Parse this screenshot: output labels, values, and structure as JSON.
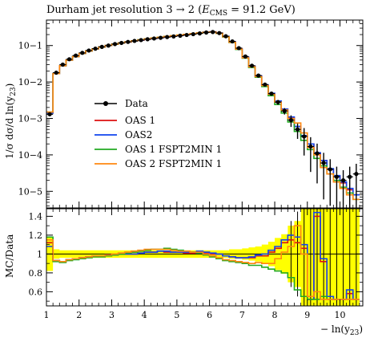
{
  "chart_data": [
    {
      "type": "line",
      "panel": "main",
      "title": "Durham jet resolution 3 → 2 (E_CMS = 91.2 GeV)",
      "title_main": "Durham jet resolution 3 → 2 (",
      "title_ecms_E": "E",
      "title_ecms_sub": "CMS",
      "title_ecms_rest": " = 91.2 GeV)",
      "ylabel": "1/σ dσ/d ln(y23)",
      "ylabel_text": "1/σ dσ/d ln(y",
      "ylabel_sub": "23",
      "ylabel_close": ")",
      "yscale": "log",
      "ylim": [
        3.5e-06,
        0.5
      ],
      "xlim": [
        1.0,
        10.7
      ],
      "yticks": [
        {
          "value": 1e-05,
          "label": "10−5"
        },
        {
          "value": 0.0001,
          "label": "10−4"
        },
        {
          "value": 0.001,
          "label": "10−3"
        },
        {
          "value": 0.01,
          "label": "10−2"
        },
        {
          "value": 0.1,
          "label": "10−1"
        }
      ],
      "legend_position": "center-left",
      "legend": [
        "Data",
        "OAS 1",
        "OAS2",
        "OAS 1 FSPT2MIN 1",
        "OAS 2 FSPT2MIN 1"
      ],
      "series": [
        {
          "name": "Data",
          "color": "#000000",
          "x": [
            1.1,
            1.3,
            1.5,
            1.7,
            1.9,
            2.1,
            2.3,
            2.5,
            2.7,
            2.9,
            3.1,
            3.3,
            3.5,
            3.7,
            3.9,
            4.1,
            4.3,
            4.5,
            4.7,
            4.9,
            5.1,
            5.3,
            5.5,
            5.7,
            5.9,
            6.1,
            6.3,
            6.5,
            6.7,
            6.9,
            7.1,
            7.3,
            7.5,
            7.7,
            7.9,
            8.1,
            8.3,
            8.5,
            8.7,
            8.9,
            9.1,
            9.3,
            9.5,
            9.7,
            9.9,
            10.1,
            10.3,
            10.5
          ],
          "y": [
            0.0013,
            0.018,
            0.03,
            0.042,
            0.053,
            0.063,
            0.073,
            0.082,
            0.092,
            0.1,
            0.11,
            0.118,
            0.126,
            0.134,
            0.141,
            0.149,
            0.156,
            0.163,
            0.171,
            0.178,
            0.186,
            0.195,
            0.205,
            0.215,
            0.228,
            0.235,
            0.22,
            0.18,
            0.13,
            0.085,
            0.05,
            0.028,
            0.015,
            0.0085,
            0.0048,
            0.0028,
            0.0016,
            0.0009,
            0.0005,
            0.00032,
            0.00017,
            0.00011,
            6e-05,
            4e-05,
            2.5e-05,
            2e-05,
            2.5e-05,
            3e-05
          ],
          "yerr_rel": [
            0.05,
            0.02,
            0.02,
            0.02,
            0.02,
            0.02,
            0.02,
            0.02,
            0.02,
            0.02,
            0.02,
            0.02,
            0.02,
            0.02,
            0.02,
            0.02,
            0.02,
            0.02,
            0.02,
            0.02,
            0.02,
            0.02,
            0.02,
            0.02,
            0.02,
            0.02,
            0.02,
            0.02,
            0.02,
            0.02,
            0.03,
            0.04,
            0.05,
            0.07,
            0.1,
            0.15,
            0.2,
            0.35,
            0.45,
            0.7,
            0.8,
            0.85,
            0.9,
            0.9,
            0.9,
            0.9,
            0.9,
            0.9
          ]
        },
        {
          "name": "OAS 1",
          "color": "#dd1111",
          "x": [
            1.0,
            1.2,
            1.4,
            1.6,
            1.8,
            2.0,
            2.2,
            2.4,
            2.6,
            2.8,
            3.0,
            3.2,
            3.4,
            3.6,
            3.8,
            4.0,
            4.2,
            4.4,
            4.6,
            4.8,
            5.0,
            5.2,
            5.4,
            5.6,
            5.8,
            6.0,
            6.2,
            6.4,
            6.6,
            6.8,
            7.0,
            7.2,
            7.4,
            7.6,
            7.8,
            8.0,
            8.2,
            8.4,
            8.6,
            8.8,
            9.0,
            9.2,
            9.4,
            9.6,
            9.8,
            10.0,
            10.2,
            10.4
          ],
          "y": [
            0.0014,
            0.017,
            0.028,
            0.04,
            0.05,
            0.061,
            0.071,
            0.081,
            0.091,
            0.1,
            0.109,
            0.117,
            0.125,
            0.133,
            0.141,
            0.149,
            0.157,
            0.165,
            0.173,
            0.182,
            0.19,
            0.199,
            0.209,
            0.221,
            0.233,
            0.238,
            0.22,
            0.177,
            0.126,
            0.082,
            0.048,
            0.027,
            0.0147,
            0.0083,
            0.0048,
            0.0029,
            0.0018,
            0.00105,
            0.0006,
            0.00033,
            0.0002,
            0.00011,
            7e-05,
            4e-05,
            2.6e-05,
            1.7e-05,
            1.1e-05,
            8e-06
          ]
        },
        {
          "name": "OAS2",
          "color": "#1144ee",
          "x": [
            1.0,
            1.2,
            1.4,
            1.6,
            1.8,
            2.0,
            2.2,
            2.4,
            2.6,
            2.8,
            3.0,
            3.2,
            3.4,
            3.6,
            3.8,
            4.0,
            4.2,
            4.4,
            4.6,
            4.8,
            5.0,
            5.2,
            5.4,
            5.6,
            5.8,
            6.0,
            6.2,
            6.4,
            6.6,
            6.8,
            7.0,
            7.2,
            7.4,
            7.6,
            7.8,
            8.0,
            8.2,
            8.4,
            8.6,
            8.8,
            9.0,
            9.2,
            9.4,
            9.6,
            9.8,
            10.0,
            10.2,
            10.4
          ],
          "y": [
            0.0014,
            0.017,
            0.028,
            0.04,
            0.05,
            0.061,
            0.071,
            0.081,
            0.091,
            0.1,
            0.109,
            0.117,
            0.125,
            0.133,
            0.141,
            0.149,
            0.157,
            0.165,
            0.174,
            0.182,
            0.191,
            0.2,
            0.21,
            0.222,
            0.234,
            0.238,
            0.22,
            0.178,
            0.127,
            0.082,
            0.048,
            0.027,
            0.0147,
            0.0083,
            0.0049,
            0.003,
            0.0018,
            0.0011,
            0.0006,
            0.00034,
            0.0002,
            0.000115,
            7e-05,
            4.2e-05,
            2.7e-05,
            1.8e-05,
            1.2e-05,
            8e-06
          ]
        },
        {
          "name": "OAS 1 FSPT2MIN 1",
          "color": "#22aa22",
          "x": [
            1.0,
            1.2,
            1.4,
            1.6,
            1.8,
            2.0,
            2.2,
            2.4,
            2.6,
            2.8,
            3.0,
            3.2,
            3.4,
            3.6,
            3.8,
            4.0,
            4.2,
            4.4,
            4.6,
            4.8,
            5.0,
            5.2,
            5.4,
            5.6,
            5.8,
            6.0,
            6.2,
            6.4,
            6.6,
            6.8,
            7.0,
            7.2,
            7.4,
            7.6,
            7.8,
            8.0,
            8.2,
            8.4,
            8.6,
            8.8,
            9.0,
            9.2,
            9.4,
            9.6,
            9.8,
            10.0,
            10.2,
            10.4
          ],
          "y": [
            0.0015,
            0.017,
            0.028,
            0.04,
            0.05,
            0.061,
            0.071,
            0.081,
            0.091,
            0.1,
            0.109,
            0.118,
            0.126,
            0.135,
            0.144,
            0.152,
            0.161,
            0.17,
            0.178,
            0.186,
            0.194,
            0.202,
            0.211,
            0.221,
            0.231,
            0.235,
            0.216,
            0.172,
            0.121,
            0.078,
            0.045,
            0.025,
            0.0135,
            0.0075,
            0.0042,
            0.0024,
            0.0014,
            0.0008,
            0.00044,
            0.00025,
            0.00014,
            8e-05,
            5e-05,
            3e-05,
            2e-05,
            1.3e-05,
            9e-06,
            6e-06
          ]
        },
        {
          "name": "OAS 2 FSPT2MIN 1",
          "color": "#ff8811",
          "x": [
            1.0,
            1.2,
            1.4,
            1.6,
            1.8,
            2.0,
            2.2,
            2.4,
            2.6,
            2.8,
            3.0,
            3.2,
            3.4,
            3.6,
            3.8,
            4.0,
            4.2,
            4.4,
            4.6,
            4.8,
            5.0,
            5.2,
            5.4,
            5.6,
            5.8,
            6.0,
            6.2,
            6.4,
            6.6,
            6.8,
            7.0,
            7.2,
            7.4,
            7.6,
            7.8,
            8.0,
            8.2,
            8.4,
            8.6,
            8.8,
            9.0,
            9.2,
            9.4,
            9.6,
            9.8,
            10.0,
            10.2,
            10.4
          ],
          "y": [
            0.0015,
            0.017,
            0.028,
            0.04,
            0.05,
            0.061,
            0.071,
            0.081,
            0.091,
            0.1,
            0.109,
            0.118,
            0.126,
            0.135,
            0.143,
            0.152,
            0.16,
            0.169,
            0.177,
            0.186,
            0.194,
            0.203,
            0.212,
            0.222,
            0.232,
            0.236,
            0.217,
            0.174,
            0.123,
            0.08,
            0.046,
            0.026,
            0.014,
            0.008,
            0.0046,
            0.0028,
            0.0017,
            0.001,
            0.00075,
            0.0004,
            0.00016,
            0.0001,
            4.5e-05,
            3e-05,
            1.8e-05,
            1.2e-05,
            8e-06,
            6e-06
          ]
        }
      ]
    },
    {
      "type": "line",
      "panel": "ratio",
      "ylabel": "MC/Data",
      "xlabel": "− ln(y23)",
      "xlabel_text": "− ln(y",
      "xlabel_sub": "23",
      "xlabel_close": ")",
      "xlim": [
        1.0,
        10.7
      ],
      "ylim": [
        0.45,
        1.48
      ],
      "xticks": [
        1,
        2,
        3,
        4,
        5,
        6,
        7,
        8,
        9,
        10
      ],
      "yticks": [
        0.6,
        0.8,
        1.0,
        1.2,
        1.4
      ],
      "ytick_labels": [
        "0.6",
        "0.8",
        "1",
        "1.2",
        "1.4"
      ],
      "band_color": "#ffff00",
      "band": {
        "x": [
          1.0,
          1.2,
          1.4,
          1.6,
          1.8,
          2.0,
          2.2,
          2.4,
          2.6,
          2.8,
          3.0,
          3.2,
          3.4,
          3.6,
          3.8,
          4.0,
          4.2,
          4.4,
          4.6,
          4.8,
          5.0,
          5.2,
          5.4,
          5.6,
          5.8,
          6.0,
          6.2,
          6.4,
          6.6,
          6.8,
          7.0,
          7.2,
          7.4,
          7.6,
          7.8,
          8.0,
          8.2,
          8.4,
          8.6,
          8.8,
          9.0,
          9.2,
          9.4,
          9.6,
          9.8,
          10.0,
          10.2,
          10.4
        ],
        "half_width": [
          0.18,
          0.05,
          0.04,
          0.04,
          0.04,
          0.04,
          0.04,
          0.04,
          0.04,
          0.04,
          0.04,
          0.04,
          0.04,
          0.04,
          0.04,
          0.04,
          0.04,
          0.04,
          0.04,
          0.04,
          0.04,
          0.04,
          0.04,
          0.04,
          0.04,
          0.04,
          0.04,
          0.04,
          0.05,
          0.05,
          0.06,
          0.07,
          0.08,
          0.1,
          0.13,
          0.17,
          0.21,
          0.3,
          0.35,
          0.8,
          0.8,
          0.8,
          0.8,
          0.8,
          0.8,
          0.8,
          0.8,
          0.8
        ]
      },
      "series": [
        {
          "name": "OAS 1",
          "color": "#dd1111",
          "values": [
            1.12,
            0.93,
            0.92,
            0.94,
            0.95,
            0.96,
            0.97,
            0.98,
            0.98,
            0.99,
            0.99,
            1.0,
            1.0,
            1.0,
            1.01,
            1.02,
            1.02,
            1.03,
            1.02,
            1.02,
            1.02,
            1.01,
            1.01,
            1.02,
            1.01,
            1.0,
            1.0,
            0.98,
            0.97,
            0.96,
            0.96,
            0.96,
            0.98,
            0.98,
            1.02,
            1.06,
            1.12,
            1.15,
            1.12,
            1.06,
            0.52,
            1.4,
            0.92,
            0.52,
            0.52,
            0.52,
            0.58,
            0.52
          ]
        },
        {
          "name": "OAS2",
          "color": "#1144ee",
          "values": [
            1.08,
            0.93,
            0.92,
            0.94,
            0.95,
            0.96,
            0.97,
            0.98,
            0.98,
            0.99,
            0.99,
            1.0,
            1.0,
            1.0,
            1.01,
            1.02,
            1.02,
            1.03,
            1.03,
            1.02,
            1.02,
            1.02,
            1.02,
            1.03,
            1.02,
            1.01,
            1.0,
            0.98,
            0.97,
            0.96,
            0.96,
            0.97,
            0.99,
            1.0,
            1.04,
            1.08,
            1.15,
            1.2,
            1.18,
            1.1,
            0.52,
            1.44,
            0.95,
            0.55,
            0.52,
            0.52,
            0.62,
            0.52
          ]
        },
        {
          "name": "OAS 1 FSPT2MIN 1",
          "color": "#22aa22",
          "values": [
            1.18,
            0.92,
            0.91,
            0.93,
            0.94,
            0.95,
            0.96,
            0.97,
            0.97,
            0.98,
            0.99,
            1.0,
            1.01,
            1.02,
            1.03,
            1.04,
            1.05,
            1.05,
            1.06,
            1.05,
            1.04,
            1.03,
            1.02,
            1.01,
            0.99,
            0.97,
            0.95,
            0.93,
            0.92,
            0.91,
            0.9,
            0.88,
            0.88,
            0.86,
            0.84,
            0.82,
            0.8,
            0.75,
            0.62,
            0.55,
            0.52,
            0.52,
            0.55,
            0.52,
            0.52,
            0.52,
            0.52,
            0.52
          ]
        },
        {
          "name": "OAS 2 FSPT2MIN 1",
          "color": "#ff8811",
          "values": [
            1.15,
            0.93,
            0.92,
            0.94,
            0.95,
            0.96,
            0.97,
            0.98,
            0.98,
            0.99,
            1.0,
            1.01,
            1.02,
            1.03,
            1.04,
            1.05,
            1.05,
            1.05,
            1.05,
            1.04,
            1.03,
            1.03,
            1.02,
            1.02,
            1.0,
            0.98,
            0.96,
            0.94,
            0.93,
            0.92,
            0.91,
            0.9,
            0.91,
            0.9,
            0.9,
            0.95,
            1.02,
            1.08,
            1.3,
            1.0,
            0.55,
            0.6,
            0.52,
            0.52,
            0.52,
            0.52,
            0.52,
            0.52
          ]
        }
      ]
    }
  ]
}
